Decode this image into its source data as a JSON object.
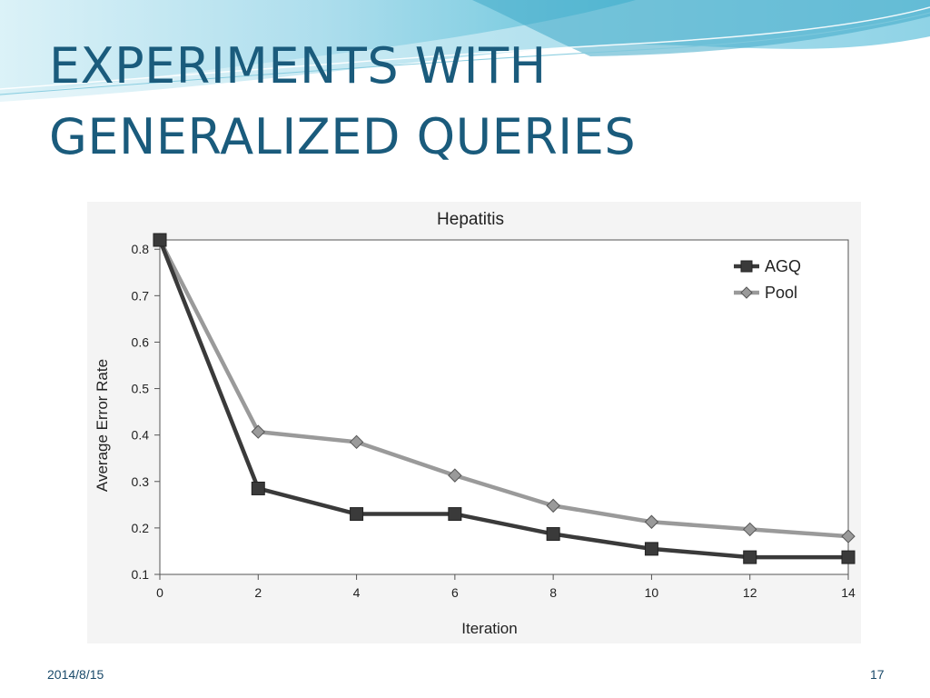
{
  "slide": {
    "title_line1": "EXPERIMENTS WITH",
    "title_line2": "GENERALIZED QUERIES",
    "date": "2014/8/15",
    "page_number": "17"
  },
  "colors": {
    "title": "#1a5b7c",
    "agq": "#3a3a3a",
    "pool": "#9a9a9a",
    "wave_light": "#bfe7f1",
    "wave_dark": "#4fb5d0"
  },
  "chart_data": {
    "type": "line",
    "title": "Hepatitis",
    "xlabel": "Iteration",
    "ylabel": "Average Error Rate",
    "xlim": [
      0,
      14
    ],
    "ylim": [
      0.1,
      0.82
    ],
    "xticks": [
      0,
      2,
      4,
      6,
      8,
      10,
      12,
      14
    ],
    "yticks": [
      0.1,
      0.2,
      0.3,
      0.4,
      0.5,
      0.6,
      0.7,
      0.8
    ],
    "legend_position": "top-right",
    "grid": false,
    "x": [
      0,
      2,
      4,
      6,
      8,
      10,
      12,
      14
    ],
    "series": [
      {
        "name": "AGQ",
        "marker": "square",
        "color": "#3a3a3a",
        "values": [
          0.82,
          0.285,
          0.23,
          0.23,
          0.187,
          0.155,
          0.137,
          0.137
        ]
      },
      {
        "name": "Pool",
        "marker": "diamond",
        "color": "#9a9a9a",
        "values": [
          0.82,
          0.407,
          0.385,
          0.313,
          0.248,
          0.213,
          0.197,
          0.182
        ]
      }
    ]
  }
}
